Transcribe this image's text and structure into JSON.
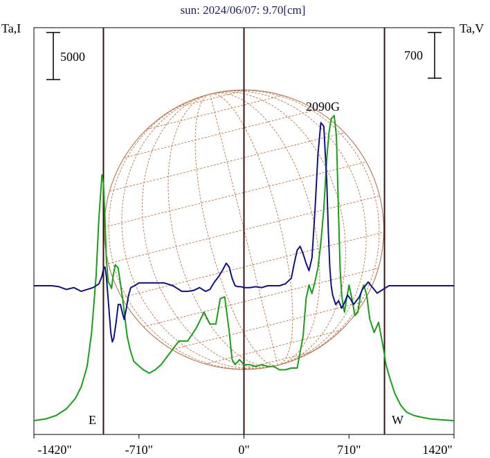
{
  "chart_data": {
    "type": "line",
    "title": "sun: 2024/06/07: 9.70[cm]",
    "ylabel_left": "Ta,I",
    "ylabel_right": "Ta,V",
    "scale_left": "5000",
    "scale_right": "700",
    "peak_label": "2090G",
    "east_label": "E",
    "west_label": "W",
    "xlim": [
      -1420,
      1420
    ],
    "x_ticks": [
      -1420,
      -710,
      0,
      710,
      1420
    ],
    "x_tick_labels": [
      "-1420\"",
      "-710\"",
      "0\"",
      "710\"",
      "1420\""
    ],
    "vlines": [
      -950,
      0,
      950
    ],
    "series": [
      {
        "color": "#16a016",
        "x": [
          -1420,
          -1340,
          -1270,
          -1200,
          -1140,
          -1100,
          -1060,
          -1030,
          -1000,
          -980,
          -960,
          -950,
          -940,
          -930,
          -918,
          -905,
          -895,
          -885,
          -870,
          -850,
          -820,
          -790,
          -770,
          -745,
          -720,
          -680,
          -640,
          -600,
          -560,
          -500,
          -440,
          -380,
          -320,
          -270,
          -230,
          -190,
          -160,
          -130,
          -100,
          -80,
          -60,
          -30,
          0,
          40,
          80,
          120,
          160,
          200,
          240,
          280,
          320,
          360,
          400,
          420,
          440,
          460,
          480,
          500,
          520,
          540,
          560,
          575,
          590,
          610,
          625,
          640,
          650,
          660,
          670,
          680,
          690,
          710,
          730,
          750,
          770,
          790,
          810,
          830,
          850,
          880,
          910,
          940,
          960,
          990,
          1020,
          1060,
          1100,
          1150,
          1200,
          1260,
          1330,
          1420
        ],
        "y": [
          0,
          0.01,
          0.03,
          0.07,
          0.13,
          0.2,
          0.32,
          0.52,
          0.85,
          1.2,
          1.45,
          1.4,
          1.2,
          0.95,
          0.82,
          0.8,
          0.78,
          0.85,
          0.92,
          0.9,
          0.72,
          0.5,
          0.42,
          0.35,
          0.33,
          0.3,
          0.28,
          0.3,
          0.33,
          0.4,
          0.47,
          0.47,
          0.55,
          0.64,
          0.57,
          0.57,
          0.72,
          0.73,
          0.53,
          0.36,
          0.33,
          0.36,
          0.33,
          0.33,
          0.32,
          0.33,
          0.32,
          0.32,
          0.3,
          0.3,
          0.31,
          0.31,
          0.5,
          0.72,
          0.8,
          0.75,
          0.82,
          0.9,
          1.05,
          1.25,
          1.55,
          1.7,
          1.78,
          1.8,
          1.68,
          1.2,
          0.9,
          0.75,
          0.68,
          0.64,
          0.7,
          0.8,
          0.72,
          0.62,
          0.64,
          0.75,
          0.8,
          0.74,
          0.6,
          0.52,
          0.58,
          0.44,
          0.33,
          0.24,
          0.16,
          0.09,
          0.05,
          0.03,
          0.02,
          0.01,
          0.005,
          0
        ]
      },
      {
        "color": "#10108a",
        "x": [
          -1420,
          -1300,
          -1250,
          -1200,
          -1150,
          -1100,
          -1060,
          -1020,
          -980,
          -960,
          -950,
          -940,
          -930,
          -915,
          -900,
          -890,
          -880,
          -865,
          -850,
          -835,
          -820,
          -810,
          -795,
          -780,
          -765,
          -740,
          -710,
          -660,
          -600,
          -540,
          -480,
          -420,
          -380,
          -340,
          -300,
          -260,
          -230,
          -200,
          -170,
          -140,
          -120,
          -100,
          -80,
          -60,
          -40,
          -20,
          0,
          40,
          80,
          120,
          160,
          200,
          240,
          280,
          320,
          340,
          360,
          380,
          400,
          420,
          440,
          460,
          480,
          500,
          520,
          540,
          560,
          570,
          580,
          590,
          600,
          620,
          640,
          660,
          680,
          700,
          720,
          740,
          760,
          780,
          800,
          820,
          840,
          860,
          880,
          900,
          920,
          940,
          960,
          980,
          1000,
          1040,
          1080,
          1120,
          1160,
          1200,
          1260,
          1420
        ],
        "y": [
          0,
          0,
          -0.005,
          -0.02,
          -0.01,
          -0.03,
          -0.02,
          -0.01,
          0.01,
          0.05,
          0.09,
          0.1,
          0.05,
          -0.1,
          -0.25,
          -0.3,
          -0.28,
          -0.2,
          -0.1,
          -0.1,
          -0.15,
          -0.18,
          -0.12,
          -0.05,
          -0.01,
          0,
          0.015,
          0.015,
          0.015,
          0.015,
          0.0,
          -0.03,
          -0.03,
          -0.025,
          -0.01,
          -0.03,
          -0.02,
          0.02,
          0.05,
          0.09,
          0.12,
          0.1,
          0.04,
          0.0,
          -0.005,
          -0.005,
          -0.01,
          -0.01,
          -0.005,
          -0.01,
          0.0,
          0.0,
          0.0,
          0.01,
          0.04,
          0.12,
          0.19,
          0.21,
          0.17,
          0.12,
          0.08,
          0.15,
          0.4,
          0.7,
          0.87,
          0.85,
          0.55,
          0.3,
          0.1,
          0.0,
          -0.05,
          -0.1,
          -0.08,
          -0.12,
          -0.09,
          -0.05,
          -0.07,
          -0.1,
          -0.08,
          -0.06,
          -0.02,
          0.0,
          0.02,
          0.0,
          -0.02,
          -0.04,
          -0.03,
          -0.02,
          -0.01,
          0.0,
          0.0,
          0.0,
          0.0,
          0.0,
          0.0,
          0.0,
          0.0,
          0.0
        ]
      }
    ]
  }
}
